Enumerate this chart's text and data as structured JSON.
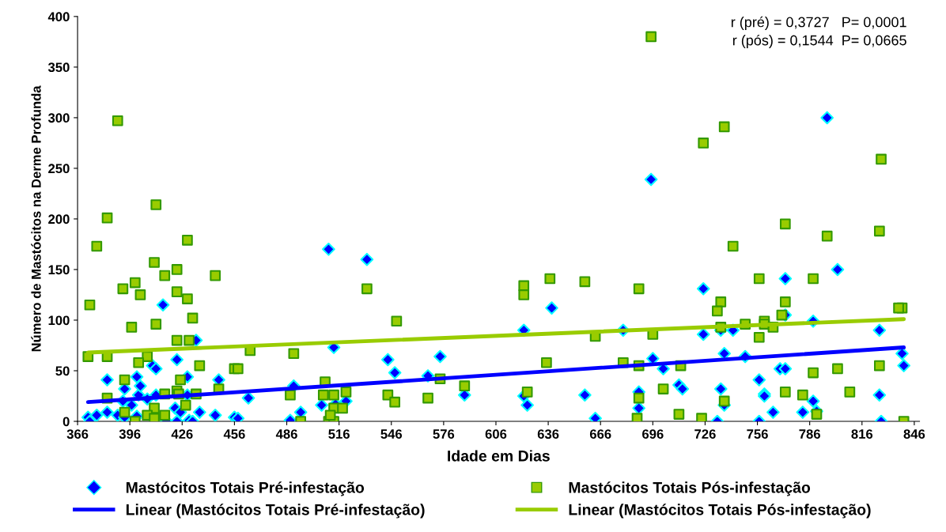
{
  "chart_data": {
    "type": "scatter",
    "xlabel": "Idade em Dias",
    "ylabel": "Número de Mastócitos na Derme Profunda",
    "xlim": [
      366,
      849
    ],
    "xticks": [
      366,
      396,
      426,
      456,
      486,
      516,
      546,
      576,
      606,
      636,
      666,
      696,
      726,
      756,
      786,
      816,
      846
    ],
    "ylim": [
      0,
      400
    ],
    "yticks": [
      0,
      50,
      100,
      150,
      200,
      250,
      300,
      350,
      400
    ],
    "grid": false,
    "legend": "bottom",
    "annotations": [
      "r (pré) = 0,3727   P= 0,0001",
      "r (pós) = 0,1544  P= 0,0665"
    ],
    "series": [
      {
        "name": "Mastócitos Totais Pré-infestação",
        "color": "#0000ff",
        "marker": "diamond",
        "x": [
          372,
          373,
          377,
          383,
          383,
          389,
          393,
          392,
          393,
          397,
          400,
          400,
          401,
          402,
          406,
          409,
          411,
          411,
          415,
          417,
          422,
          423,
          423,
          425,
          429,
          430,
          432,
          434,
          429,
          436,
          445,
          447,
          456,
          510,
          532,
          513,
          544,
          548,
          574,
          567,
          588,
          490,
          464,
          494,
          458,
          488,
          506,
          514,
          520,
          725,
          638,
          622,
          679,
          725,
          696,
          702,
          657,
          622,
          624,
          688,
          688,
          711,
          713,
          663,
          695,
          796,
          802,
          772,
          772,
          788,
          735,
          742,
          826,
          737,
          749,
          839,
          840,
          769,
          772,
          757,
          735,
          760,
          760,
          826,
          788,
          737,
          765,
          782,
          790,
          733,
          757,
          827
        ],
        "values": [
          4,
          0,
          6,
          41,
          9,
          6,
          32,
          20,
          4,
          16,
          44,
          5,
          26,
          35,
          22,
          55,
          52,
          26,
          115,
          0,
          13,
          61,
          0,
          9,
          44,
          1,
          0,
          80,
          26,
          9,
          6,
          41,
          4,
          170,
          160,
          73,
          61,
          48,
          64,
          45,
          26,
          35,
          23,
          9,
          3,
          1,
          16,
          17,
          20,
          131,
          112,
          90,
          90,
          86,
          62,
          52,
          26,
          25,
          16,
          29,
          13,
          36,
          32,
          3,
          239,
          300,
          150,
          141,
          105,
          99,
          90,
          90,
          90,
          67,
          64,
          67,
          55,
          52,
          52,
          41,
          32,
          27,
          25,
          26,
          20,
          16,
          9,
          9,
          10,
          0,
          0,
          0
        ]
      },
      {
        "name": "Mastócitos Totais Pós-infestação",
        "color": "#99cc00",
        "marker": "square",
        "x": [
          389,
          383,
          377,
          411,
          429,
          410,
          423,
          416,
          445,
          399,
          392,
          402,
          423,
          429,
          373,
          432,
          397,
          411,
          423,
          430,
          372,
          383,
          406,
          401,
          436,
          393,
          425,
          383,
          447,
          423,
          416,
          424,
          434,
          428,
          410,
          393,
          406,
          410,
          416,
          399,
          456,
          532,
          549,
          465,
          458,
          490,
          508,
          488,
          507,
          513,
          520,
          544,
          548,
          574,
          567,
          588,
          513,
          518,
          494,
          510,
          513,
          511,
          622,
          622,
          637,
          657,
          688,
          663,
          696,
          635,
          679,
          688,
          712,
          624,
          702,
          688,
          711,
          687,
          724,
          695,
          737,
          725,
          827,
          772,
          796,
          826,
          742,
          757,
          788,
          735,
          772,
          733,
          770,
          839,
          837,
          735,
          749,
          760,
          760,
          765,
          757,
          788,
          802,
          826,
          772,
          782,
          809,
          737,
          790,
          840
        ],
        "values": [
          297,
          201,
          173,
          214,
          179,
          157,
          150,
          144,
          144,
          137,
          131,
          125,
          128,
          121,
          115,
          102,
          93,
          96,
          80,
          80,
          64,
          64,
          64,
          58,
          55,
          41,
          41,
          23,
          32,
          30,
          27,
          27,
          27,
          16,
          13,
          9,
          6,
          3,
          6,
          0,
          52,
          131,
          99,
          70,
          52,
          67,
          39,
          26,
          26,
          26,
          29,
          26,
          19,
          42,
          23,
          35,
          13,
          13,
          0,
          0,
          0,
          6,
          134,
          125,
          141,
          138,
          131,
          84,
          86,
          58,
          58,
          55,
          55,
          29,
          32,
          23,
          7,
          3,
          3,
          380,
          291,
          275,
          259,
          195,
          183,
          188,
          173,
          141,
          141,
          118,
          118,
          109,
          105,
          112,
          112,
          93,
          96,
          99,
          96,
          93,
          83,
          48,
          52,
          55,
          29,
          26,
          29,
          20,
          7,
          0
        ]
      },
      {
        "name": "Linear (Mastócitos Totais Pré-infestação)",
        "type": "line",
        "color": "#0000ff",
        "x": [
          372,
          840
        ],
        "values": [
          19,
          73
        ]
      },
      {
        "name": "Linear (Mastócitos Totais Pós-infestação)",
        "type": "line",
        "color": "#99cc00",
        "x": [
          372,
          840
        ],
        "values": [
          68,
          101
        ]
      }
    ]
  }
}
